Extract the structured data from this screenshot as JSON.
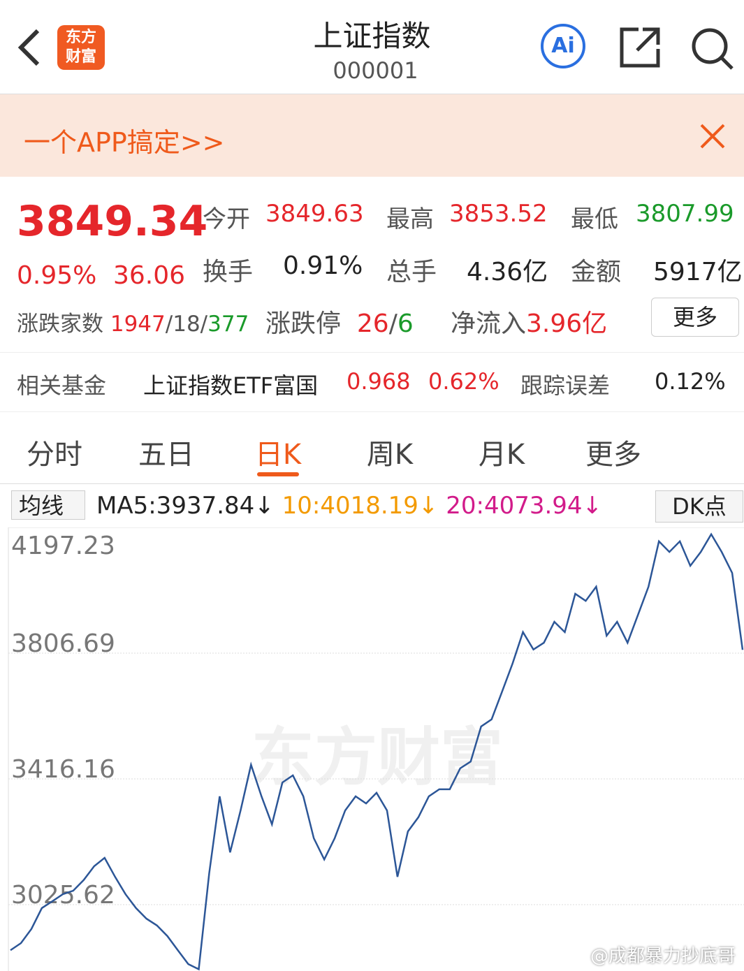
{
  "header": {
    "logo": [
      "东方",
      "财富"
    ],
    "title": "上证指数",
    "code": "000001",
    "ai": "Ai"
  },
  "banner": {
    "text": "一个APP搞定>>"
  },
  "quote": {
    "price": "3849.34",
    "change_pct": "0.95%",
    "change": "36.06",
    "fields": [
      {
        "label": "今开",
        "value": "3849.63"
      },
      {
        "label": "最高",
        "value": "3853.52"
      },
      {
        "label": "最低",
        "value": "3807.99"
      },
      {
        "label": "换手",
        "value": "0.91%"
      },
      {
        "label": "总手",
        "value": "4.36亿"
      },
      {
        "label": "金额",
        "value": "5917亿"
      }
    ],
    "breadth_label": "涨跌家数",
    "up": "1947",
    "flat": "18",
    "down": "377",
    "separator": "/",
    "limit_label": "涨跌停",
    "limit_up": "26",
    "limit_down": "6",
    "flow_label": "净流入",
    "flow": "3.96亿",
    "more": "更多"
  },
  "fund": {
    "label": "相关基金",
    "name": "上证指数ETF富国",
    "price": "0.968",
    "pct": "0.62%",
    "track_label": "跟踪误差",
    "track": "0.12%"
  },
  "tabs": {
    "items": [
      "分时",
      "五日",
      "日K",
      "周K",
      "月K",
      "更多"
    ],
    "active": 2
  },
  "ma": {
    "selector": "均线",
    "items": [
      "MA5:3937.84",
      "10:4018.19",
      "20:4073.94"
    ],
    "arrow": "↓",
    "dk": "DK点"
  },
  "watermark": "东方财富",
  "credit": "@成都暴力抄底哥",
  "chart_data": {
    "type": "line",
    "color": "#2c5697",
    "ylim": [
      2819.5,
      4197.23
    ],
    "yticks": [
      4197.23,
      3806.69,
      3416.16,
      3025.62
    ],
    "grid": true,
    "values": [
      2884,
      2906,
      2950,
      3015,
      3036,
      3058,
      3069,
      3102,
      3145,
      3171,
      3112,
      3058,
      3015,
      2982,
      2961,
      2928,
      2884,
      2841,
      2825,
      3123,
      3362,
      3188,
      3318,
      3460,
      3362,
      3275,
      3405,
      3427,
      3362,
      3232,
      3166,
      3232,
      3318,
      3362,
      3340,
      3373,
      3318,
      3112,
      3253,
      3297,
      3362,
      3384,
      3384,
      3449,
      3470,
      3579,
      3601,
      3687,
      3774,
      3872,
      3818,
      3839,
      3904,
      3872,
      3991,
      3969,
      4013,
      3861,
      3904,
      3839,
      3926,
      4013,
      4154,
      4121,
      4154,
      4078,
      4121,
      4176,
      4121,
      4056,
      3817
    ]
  }
}
